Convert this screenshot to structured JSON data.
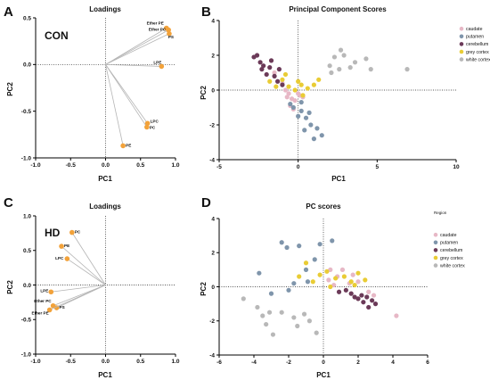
{
  "colors": {
    "loading": "#f2a23a",
    "caudate": "#e7b8c6",
    "putamen": "#7f95ab",
    "cerebellum": "#6b3a58",
    "grey cortex": "#e9cc35",
    "white cortex": "#b8b8b8"
  },
  "chart_data": [
    {
      "panel": "A",
      "type": "scatter",
      "title": "Loadings",
      "group_label": "CON",
      "xlabel": "PC1",
      "ylabel": "PC2",
      "xlim": [
        -1.0,
        1.0
      ],
      "ylim": [
        -1.0,
        0.5
      ],
      "xticks": [
        "-1.0",
        "-0.5",
        "0.0",
        "0.5",
        "1.0"
      ],
      "yticks": [
        "0.5",
        "0.0",
        "-0.5",
        "-1.0"
      ],
      "points": [
        {
          "label": "Ether PE",
          "x": 0.87,
          "y": 0.39
        },
        {
          "label": "Ether PC",
          "x": 0.9,
          "y": 0.37
        },
        {
          "label": "PS",
          "x": 0.91,
          "y": 0.33
        },
        {
          "label": "LPE",
          "x": 0.8,
          "y": -0.02
        },
        {
          "label": "LPC",
          "x": 0.6,
          "y": -0.63
        },
        {
          "label": "PC",
          "x": 0.59,
          "y": -0.67
        },
        {
          "label": "PE",
          "x": 0.25,
          "y": -0.87
        }
      ]
    },
    {
      "panel": "B",
      "type": "scatter",
      "title": "Principal Component Scores",
      "xlabel": "PC1",
      "ylabel": "PC2",
      "xlim": [
        -5,
        10
      ],
      "ylim": [
        -4,
        4
      ],
      "xticks": [
        "-5",
        "0",
        "5",
        "10"
      ],
      "yticks": [
        "4",
        "2",
        "0",
        "-2",
        "-4"
      ],
      "legend": [
        "caudate",
        "putamen",
        "cerebellum",
        "grey cortex",
        "white cortex"
      ],
      "series": [
        {
          "name": "caudate",
          "points": [
            [
              -1.5,
              1.0
            ],
            [
              -1.0,
              0.4
            ],
            [
              -0.8,
              0.0
            ],
            [
              -0.6,
              -0.2
            ],
            [
              -0.4,
              -0.5
            ],
            [
              -0.2,
              -0.6
            ],
            [
              0.0,
              -0.2
            ],
            [
              -0.5,
              -0.9
            ],
            [
              0.1,
              -0.3
            ],
            [
              -0.7,
              -0.4
            ],
            [
              0.3,
              -0.4
            ],
            [
              -0.3,
              -1.1
            ]
          ]
        },
        {
          "name": "putamen",
          "points": [
            [
              -0.3,
              -1.0
            ],
            [
              0.2,
              -1.2
            ],
            [
              0.5,
              -1.6
            ],
            [
              0.8,
              -2.0
            ],
            [
              1.2,
              -2.2
            ],
            [
              0.4,
              -2.3
            ],
            [
              1.0,
              -2.8
            ],
            [
              1.5,
              -2.6
            ],
            [
              0.0,
              -1.5
            ],
            [
              0.7,
              -1.3
            ],
            [
              -0.5,
              -0.8
            ],
            [
              0.2,
              -0.7
            ]
          ]
        },
        {
          "name": "cerebellum",
          "points": [
            [
              -2.8,
              1.9
            ],
            [
              -2.6,
              2.0
            ],
            [
              -2.4,
              1.6
            ],
            [
              -2.2,
              1.4
            ],
            [
              -1.8,
              1.3
            ],
            [
              -2.0,
              0.9
            ],
            [
              -1.5,
              0.8
            ],
            [
              -1.3,
              0.5
            ],
            [
              -1.0,
              0.3
            ],
            [
              -1.7,
              1.7
            ],
            [
              -1.2,
              1.2
            ],
            [
              -2.3,
              1.2
            ]
          ]
        },
        {
          "name": "grey cortex",
          "points": [
            [
              -1.8,
              0.5
            ],
            [
              -1.4,
              0.2
            ],
            [
              -1.0,
              0.6
            ],
            [
              -0.6,
              0.2
            ],
            [
              -0.2,
              0.0
            ],
            [
              0.2,
              0.3
            ],
            [
              0.6,
              0.1
            ],
            [
              1.0,
              0.3
            ],
            [
              0.3,
              -0.3
            ],
            [
              -0.8,
              0.9
            ],
            [
              1.3,
              0.6
            ],
            [
              0.0,
              0.5
            ]
          ]
        },
        {
          "name": "white cortex",
          "points": [
            [
              2.0,
              1.4
            ],
            [
              2.3,
              1.9
            ],
            [
              2.6,
              1.2
            ],
            [
              2.9,
              2.0
            ],
            [
              3.3,
              1.3
            ],
            [
              2.1,
              1.0
            ],
            [
              4.3,
              1.8
            ],
            [
              4.6,
              1.2
            ],
            [
              6.9,
              1.2
            ],
            [
              2.7,
              2.3
            ],
            [
              3.6,
              1.6
            ]
          ]
        }
      ]
    },
    {
      "panel": "C",
      "type": "scatter",
      "title": "Loadings",
      "group_label": "HD",
      "xlabel": "PC1",
      "ylabel": "PC2",
      "xlim": [
        -1.0,
        1.0
      ],
      "ylim": [
        -1.0,
        1.0
      ],
      "xticks": [
        "-1.0",
        "-0.5",
        "0.0",
        "0.5",
        "1.0"
      ],
      "yticks": [
        "1.0",
        "0.5",
        "0.0",
        "-0.5",
        "-1.0"
      ],
      "points": [
        {
          "label": "PC",
          "x": -0.48,
          "y": 0.76
        },
        {
          "label": "PE",
          "x": -0.63,
          "y": 0.56
        },
        {
          "label": "LPC",
          "x": -0.55,
          "y": 0.38
        },
        {
          "label": "LPE",
          "x": -0.78,
          "y": -0.1
        },
        {
          "label": "Ether PC",
          "x": -0.75,
          "y": -0.3
        },
        {
          "label": "PS",
          "x": -0.7,
          "y": -0.33
        },
        {
          "label": "Ether PE",
          "x": -0.8,
          "y": -0.36
        }
      ]
    },
    {
      "panel": "D",
      "type": "scatter",
      "title": "PC scores",
      "xlabel": "PC1",
      "ylabel": "PC2",
      "xlim": [
        -6,
        6
      ],
      "ylim": [
        -4,
        4
      ],
      "xticks": [
        "-6",
        "-4",
        "-2",
        "0",
        "2",
        "4",
        "6"
      ],
      "yticks": [
        "4",
        "2",
        "0",
        "-2",
        "-4"
      ],
      "legend_title": "Region",
      "legend": [
        "caudate",
        "putamen",
        "cerebellum",
        "grey cortex",
        "white cortex"
      ],
      "series": [
        {
          "name": "caudate",
          "points": [
            [
              0.4,
              1.0
            ],
            [
              0.8,
              0.6
            ],
            [
              1.1,
              1.0
            ],
            [
              1.5,
              0.2
            ],
            [
              2.0,
              0.3
            ],
            [
              2.6,
              -0.3
            ],
            [
              2.9,
              -0.5
            ],
            [
              4.2,
              -1.7
            ],
            [
              0.6,
              0.1
            ],
            [
              1.7,
              0.7
            ],
            [
              0.3,
              0.4
            ]
          ]
        },
        {
          "name": "putamen",
          "points": [
            [
              -3.7,
              0.8
            ],
            [
              -3.0,
              -0.4
            ],
            [
              -2.4,
              2.6
            ],
            [
              -2.1,
              2.3
            ],
            [
              -1.7,
              0.2
            ],
            [
              -1.0,
              1.0
            ],
            [
              -0.5,
              1.6
            ],
            [
              -0.2,
              2.5
            ],
            [
              0.5,
              2.7
            ],
            [
              -1.4,
              2.4
            ],
            [
              -2.0,
              -0.2
            ],
            [
              -0.9,
              0.3
            ]
          ]
        },
        {
          "name": "cerebellum",
          "points": [
            [
              0.9,
              -0.3
            ],
            [
              1.3,
              -0.2
            ],
            [
              1.6,
              -0.4
            ],
            [
              2.0,
              -0.7
            ],
            [
              2.3,
              -0.9
            ],
            [
              2.5,
              -0.6
            ],
            [
              2.8,
              -0.8
            ],
            [
              3.0,
              -1.0
            ],
            [
              2.2,
              -0.5
            ],
            [
              1.8,
              -0.6
            ],
            [
              2.6,
              -1.2
            ]
          ]
        },
        {
          "name": "grey cortex",
          "points": [
            [
              -1.4,
              0.6
            ],
            [
              -1.0,
              1.4
            ],
            [
              -0.6,
              0.3
            ],
            [
              -0.2,
              0.7
            ],
            [
              0.2,
              0.9
            ],
            [
              0.7,
              0.5
            ],
            [
              1.2,
              0.6
            ],
            [
              1.6,
              0.3
            ],
            [
              2.0,
              0.8
            ],
            [
              2.4,
              0.4
            ],
            [
              1.8,
              0.1
            ],
            [
              0.4,
              0.0
            ]
          ]
        },
        {
          "name": "white cortex",
          "points": [
            [
              -4.6,
              -0.7
            ],
            [
              -3.8,
              -1.2
            ],
            [
              -3.5,
              -1.7
            ],
            [
              -3.3,
              -2.2
            ],
            [
              -3.1,
              -1.5
            ],
            [
              -2.9,
              -2.8
            ],
            [
              -2.4,
              -1.5
            ],
            [
              -1.7,
              -1.8
            ],
            [
              -1.5,
              -2.3
            ],
            [
              -0.8,
              -2.0
            ],
            [
              -0.4,
              -2.7
            ],
            [
              -1.1,
              -1.6
            ]
          ]
        }
      ]
    }
  ]
}
